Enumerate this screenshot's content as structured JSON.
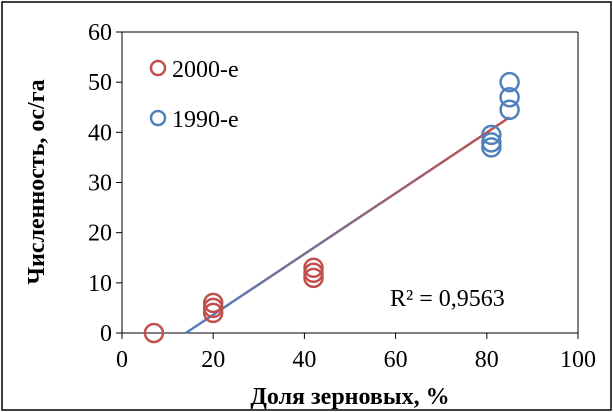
{
  "chart_data": {
    "type": "scatter",
    "xlabel": "Доля зерновых, %",
    "ylabel": "Численность, ос/га",
    "xlim": [
      0,
      100
    ],
    "ylim": [
      0,
      60
    ],
    "x_ticks": [
      "0",
      "20",
      "40",
      "60",
      "80",
      "100"
    ],
    "y_ticks": [
      "0",
      "10",
      "20",
      "30",
      "40",
      "50",
      "60"
    ],
    "grid": false,
    "legend_position": "top-left",
    "series": [
      {
        "name": "2000-е",
        "color": "#C0504D",
        "points": [
          [
            7,
            0
          ],
          [
            20,
            4
          ],
          [
            20,
            5
          ],
          [
            20,
            6
          ],
          [
            42,
            11
          ],
          [
            42,
            12
          ],
          [
            42,
            13
          ]
        ]
      },
      {
        "name": "1990-е",
        "color": "#4F81BD",
        "points": [
          [
            81,
            37
          ],
          [
            81,
            38
          ],
          [
            81,
            39.5
          ],
          [
            85,
            44.5
          ],
          [
            85,
            47
          ],
          [
            85,
            50
          ]
        ]
      }
    ],
    "trendline": {
      "x_start": 14,
      "x_end": 85,
      "y_start": 0,
      "y_end": 43,
      "color_start": "#4F81BD",
      "color_end": "#C0504D"
    },
    "annotation": "R² = 0,9563"
  }
}
